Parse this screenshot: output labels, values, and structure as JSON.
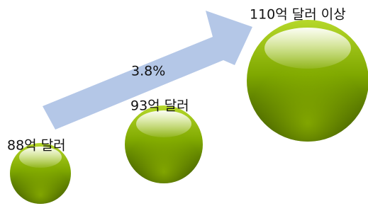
{
  "nodes": [
    {
      "label": "88억 달러"
    },
    {
      "label": "93억 달러"
    },
    {
      "label": "110억 달러 이상"
    }
  ],
  "arrow": {
    "label": "3.8%"
  }
}
